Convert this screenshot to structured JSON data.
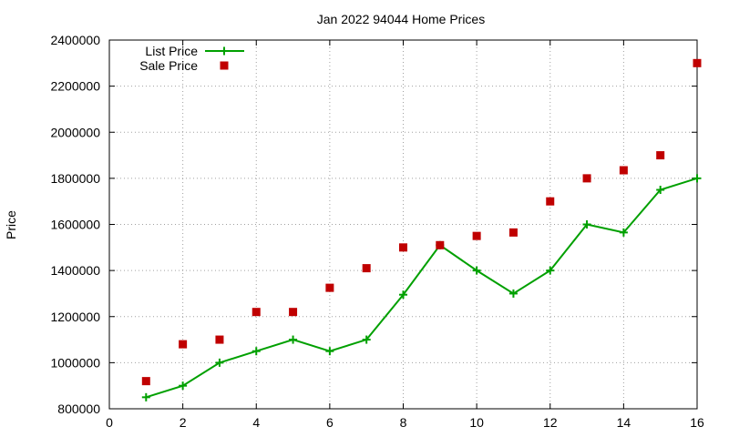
{
  "chart_data": {
    "type": "line",
    "title": "Jan 2022 94044 Home Prices",
    "xlabel": "",
    "ylabel": "Price",
    "xlim": [
      0,
      16
    ],
    "ylim": [
      800000,
      2400000
    ],
    "x_ticks": [
      0,
      2,
      4,
      6,
      8,
      10,
      12,
      14,
      16
    ],
    "y_ticks": [
      800000,
      1000000,
      1200000,
      1400000,
      1600000,
      1800000,
      2000000,
      2200000,
      2400000
    ],
    "grid": true,
    "legend_position": "top-left",
    "x": [
      1,
      2,
      3,
      4,
      5,
      6,
      7,
      8,
      9,
      10,
      11,
      12,
      13,
      14,
      15,
      16
    ],
    "series": [
      {
        "name": "List Price",
        "style": "line-plus",
        "color": "#00a000",
        "values": [
          850000,
          900000,
          1000000,
          1050000,
          1100000,
          1050000,
          1100000,
          1295000,
          1510000,
          1400000,
          1300000,
          1400000,
          1600000,
          1565000,
          1750000,
          1800000
        ]
      },
      {
        "name": "Sale Price",
        "style": "square-points",
        "color": "#c00000",
        "values": [
          920000,
          1080000,
          1100000,
          1220000,
          1220000,
          1325000,
          1410000,
          1500000,
          1510000,
          1550000,
          1565000,
          1700000,
          1800000,
          1835000,
          1900000,
          2300000
        ]
      }
    ]
  }
}
